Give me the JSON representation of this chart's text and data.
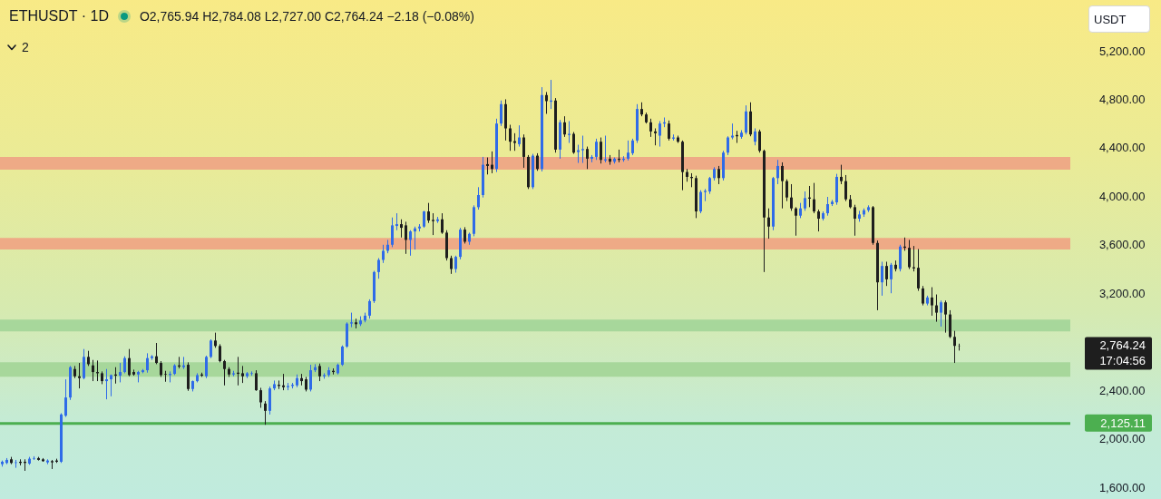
{
  "chart_data": {
    "type": "candlestick",
    "title": "ETHUSDT · 1D",
    "subtitle": "O2,765.94 H2,784.08 L2,727.00 C2,764.24 −2.18 (−0.08%)",
    "ylabel": "USDT",
    "annotations": [
      "2,764.24",
      "17:04:56",
      "2"
    ],
    "categories": [
      null,
      null,
      null,
      null,
      null,
      null,
      null,
      null,
      null,
      null,
      null,
      null,
      null,
      null,
      null,
      null,
      null,
      null,
      null,
      null,
      null,
      null,
      null,
      null,
      null,
      null,
      null,
      null,
      null,
      null,
      null,
      null,
      null,
      null,
      null,
      null,
      null,
      null,
      null,
      null,
      null,
      null,
      null,
      null,
      null,
      null,
      null,
      null,
      null,
      null,
      null,
      null,
      null,
      null,
      null,
      null,
      null,
      null,
      null,
      null,
      null,
      null,
      null,
      null,
      null,
      null,
      null,
      null,
      null,
      null,
      null,
      null,
      null,
      null,
      null,
      null,
      null,
      null,
      null,
      null,
      null,
      null,
      null,
      null,
      null,
      null,
      null,
      null,
      null,
      null,
      null,
      null,
      null,
      null,
      null,
      null,
      null,
      null,
      null,
      null,
      null,
      null,
      null,
      null,
      null,
      null,
      null,
      null,
      null,
      null,
      null,
      null,
      null,
      null,
      null,
      null,
      null,
      null,
      null,
      null,
      null,
      null,
      null,
      null,
      null,
      null,
      null,
      null,
      null,
      null,
      null,
      null,
      null,
      null,
      null,
      null,
      null,
      null,
      null,
      null,
      null,
      null,
      null,
      null,
      null,
      null,
      null,
      null,
      null,
      null,
      null,
      null,
      null,
      null,
      null,
      null,
      null,
      null,
      null,
      null,
      null,
      null,
      null,
      null,
      null,
      null,
      null,
      null,
      null,
      null,
      null,
      null,
      null,
      null,
      null,
      null,
      null,
      null,
      null,
      null,
      null,
      null,
      null,
      null,
      null,
      null,
      null,
      null,
      null,
      null,
      null,
      null,
      null,
      null,
      null,
      null,
      null,
      null,
      null,
      null,
      null,
      null,
      null,
      null,
      null,
      null,
      null,
      null,
      null,
      null,
      null,
      null,
      null,
      null,
      null,
      null,
      null,
      null,
      null,
      null,
      null,
      null,
      null,
      null,
      null,
      null,
      null,
      null,
      null,
      null,
      null,
      null,
      null,
      null,
      null,
      null
    ],
    "ohlc": [
      [
        1790,
        1820,
        1770,
        1810
      ],
      [
        1800,
        1840,
        1790,
        1825
      ],
      [
        1830,
        1850,
        1790,
        1800
      ],
      [
        1800,
        1825,
        1760,
        1805
      ],
      [
        1810,
        1830,
        1780,
        1800
      ],
      [
        1810,
        1830,
        1735,
        1800
      ],
      [
        1795,
        1850,
        1785,
        1835
      ],
      [
        1835,
        1855,
        1825,
        1840
      ],
      [
        1840,
        1850,
        1820,
        1825
      ],
      [
        1830,
        1840,
        1810,
        1815
      ],
      [
        1805,
        1830,
        1790,
        1820
      ],
      [
        1815,
        1825,
        1750,
        1805
      ],
      [
        1820,
        1835,
        1800,
        1810
      ],
      [
        1810,
        2210,
        1800,
        2200
      ],
      [
        2190,
        2490,
        2180,
        2340
      ],
      [
        2340,
        2600,
        2320,
        2590
      ],
      [
        2575,
        2600,
        2500,
        2515
      ],
      [
        2515,
        2625,
        2415,
        2500
      ],
      [
        2500,
        2740,
        2490,
        2675
      ],
      [
        2675,
        2725,
        2600,
        2615
      ],
      [
        2605,
        2650,
        2475,
        2550
      ],
      [
        2550,
        2645,
        2475,
        2540
      ],
      [
        2540,
        2555,
        2450,
        2475
      ],
      [
        2475,
        2575,
        2325,
        2490
      ],
      [
        2490,
        2530,
        2350,
        2525
      ],
      [
        2530,
        2590,
        2455,
        2520
      ],
      [
        2520,
        2625,
        2465,
        2550
      ],
      [
        2550,
        2680,
        2540,
        2665
      ],
      [
        2665,
        2740,
        2515,
        2525
      ],
      [
        2550,
        2570,
        2520,
        2530
      ],
      [
        2530,
        2560,
        2465,
        2550
      ],
      [
        2550,
        2575,
        2540,
        2565
      ],
      [
        2565,
        2705,
        2545,
        2665
      ],
      [
        2665,
        2690,
        2650,
        2680
      ],
      [
        2680,
        2790,
        2615,
        2625
      ],
      [
        2625,
        2640,
        2510,
        2525
      ],
      [
        2535,
        2560,
        2470,
        2530
      ],
      [
        2525,
        2555,
        2465,
        2535
      ],
      [
        2535,
        2615,
        2525,
        2605
      ],
      [
        2605,
        2675,
        2580,
        2595
      ],
      [
        2590,
        2675,
        2575,
        2605
      ],
      [
        2610,
        2630,
        2395,
        2410
      ],
      [
        2410,
        2480,
        2390,
        2475
      ],
      [
        2475,
        2540,
        2465,
        2525
      ],
      [
        2530,
        2545,
        2510,
        2520
      ],
      [
        2515,
        2685,
        2500,
        2675
      ],
      [
        2675,
        2820,
        2665,
        2810
      ],
      [
        2810,
        2875,
        2750,
        2765
      ],
      [
        2765,
        2780,
        2630,
        2640
      ],
      [
        2640,
        2650,
        2440,
        2575
      ],
      [
        2575,
        2590,
        2510,
        2530
      ],
      [
        2530,
        2560,
        2515,
        2540
      ],
      [
        2545,
        2675,
        2440,
        2535
      ],
      [
        2540,
        2600,
        2460,
        2515
      ],
      [
        2515,
        2550,
        2500,
        2540
      ],
      [
        2535,
        2555,
        2520,
        2540
      ],
      [
        2540,
        2565,
        2395,
        2400
      ],
      [
        2400,
        2420,
        2255,
        2300
      ],
      [
        2290,
        2310,
        2115,
        2230
      ],
      [
        2230,
        2430,
        2200,
        2415
      ],
      [
        2415,
        2480,
        2400,
        2450
      ],
      [
        2445,
        2480,
        2410,
        2435
      ],
      [
        2440,
        2535,
        2400,
        2425
      ],
      [
        2425,
        2460,
        2400,
        2435
      ],
      [
        2435,
        2460,
        2415,
        2445
      ],
      [
        2440,
        2530,
        2425,
        2500
      ],
      [
        2500,
        2535,
        2440,
        2475
      ],
      [
        2490,
        2510,
        2390,
        2405
      ],
      [
        2405,
        2610,
        2390,
        2565
      ],
      [
        2565,
        2615,
        2550,
        2590
      ],
      [
        2600,
        2620,
        2475,
        2515
      ],
      [
        2515,
        2540,
        2495,
        2525
      ],
      [
        2525,
        2590,
        2510,
        2565
      ],
      [
        2560,
        2580,
        2530,
        2550
      ],
      [
        2540,
        2620,
        2530,
        2610
      ],
      [
        2610,
        2770,
        2600,
        2760
      ],
      [
        2760,
        2960,
        2750,
        2950
      ],
      [
        2950,
        3040,
        2920,
        2960
      ],
      [
        2960,
        2990,
        2910,
        2945
      ],
      [
        2945,
        3010,
        2930,
        2975
      ],
      [
        2975,
        3040,
        2960,
        3015
      ],
      [
        3015,
        3150,
        2990,
        3135
      ],
      [
        3135,
        3385,
        3120,
        3375
      ],
      [
        3375,
        3490,
        3320,
        3475
      ],
      [
        3475,
        3600,
        3450,
        3550
      ],
      [
        3550,
        3640,
        3530,
        3600
      ],
      [
        3600,
        3825,
        3580,
        3760
      ],
      [
        3755,
        3860,
        3720,
        3770
      ],
      [
        3770,
        3810,
        3660,
        3740
      ],
      [
        3760,
        3790,
        3525,
        3640
      ],
      [
        3640,
        3720,
        3510,
        3710
      ],
      [
        3710,
        3750,
        3560,
        3735
      ],
      [
        3735,
        3770,
        3710,
        3750
      ],
      [
        3750,
        3880,
        3740,
        3875
      ],
      [
        3875,
        3945,
        3780,
        3800
      ],
      [
        3805,
        3860,
        3680,
        3795
      ],
      [
        3795,
        3830,
        3780,
        3810
      ],
      [
        3810,
        3860,
        3690,
        3700
      ],
      [
        3700,
        3720,
        3470,
        3490
      ],
      [
        3490,
        3510,
        3360,
        3400
      ],
      [
        3400,
        3510,
        3370,
        3500
      ],
      [
        3500,
        3740,
        3480,
        3725
      ],
      [
        3725,
        3745,
        3610,
        3625
      ],
      [
        3625,
        3700,
        3600,
        3690
      ],
      [
        3690,
        3925,
        3670,
        3910
      ],
      [
        3910,
        4075,
        3890,
        4010
      ],
      [
        4010,
        4325,
        3990,
        4260
      ],
      [
        4265,
        4320,
        4180,
        4250
      ],
      [
        4260,
        4370,
        4190,
        4225
      ],
      [
        4225,
        4640,
        4200,
        4600
      ],
      [
        4600,
        4790,
        4580,
        4760
      ],
      [
        4760,
        4800,
        4460,
        4560
      ],
      [
        4560,
        4590,
        4375,
        4450
      ],
      [
        4455,
        4520,
        4375,
        4440
      ],
      [
        4430,
        4585,
        4410,
        4485
      ],
      [
        4485,
        4510,
        4235,
        4325
      ],
      [
        4325,
        4340,
        4060,
        4075
      ],
      [
        4075,
        4350,
        4060,
        4335
      ],
      [
        4335,
        4355,
        4210,
        4225
      ],
      [
        4225,
        4900,
        4205,
        4835
      ],
      [
        4835,
        4860,
        4680,
        4785
      ],
      [
        4780,
        4960,
        4720,
        4790
      ],
      [
        4790,
        4810,
        4360,
        4385
      ],
      [
        4385,
        4630,
        4310,
        4610
      ],
      [
        4610,
        4660,
        4490,
        4510
      ],
      [
        4505,
        4620,
        4440,
        4515
      ],
      [
        4515,
        4530,
        4350,
        4360
      ],
      [
        4365,
        4425,
        4275,
        4380
      ],
      [
        4380,
        4500,
        4275,
        4390
      ],
      [
        4390,
        4410,
        4225,
        4310
      ],
      [
        4310,
        4340,
        4280,
        4325
      ],
      [
        4325,
        4475,
        4300,
        4450
      ],
      [
        4450,
        4485,
        4270,
        4300
      ],
      [
        4295,
        4500,
        4280,
        4305
      ],
      [
        4310,
        4340,
        4260,
        4285
      ],
      [
        4285,
        4320,
        4270,
        4310
      ],
      [
        4310,
        4385,
        4280,
        4300
      ],
      [
        4300,
        4330,
        4285,
        4310
      ],
      [
        4310,
        4460,
        4295,
        4360
      ],
      [
        4355,
        4475,
        4340,
        4460
      ],
      [
        4460,
        4760,
        4440,
        4720
      ],
      [
        4720,
        4775,
        4660,
        4675
      ],
      [
        4675,
        4690,
        4600,
        4610
      ],
      [
        4610,
        4640,
        4490,
        4535
      ],
      [
        4535,
        4560,
        4420,
        4520
      ],
      [
        4500,
        4620,
        4410,
        4600
      ],
      [
        4600,
        4650,
        4570,
        4610
      ],
      [
        4600,
        4625,
        4460,
        4475
      ],
      [
        4475,
        4510,
        4460,
        4485
      ],
      [
        4485,
        4500,
        4440,
        4450
      ],
      [
        4450,
        4460,
        4050,
        4200
      ],
      [
        4200,
        4225,
        4120,
        4160
      ],
      [
        4160,
        4190,
        4075,
        4150
      ],
      [
        4150,
        4170,
        3820,
        3875
      ],
      [
        3875,
        4050,
        3860,
        4035
      ],
      [
        4035,
        4060,
        3960,
        4045
      ],
      [
        4040,
        4160,
        4020,
        4150
      ],
      [
        4150,
        4240,
        4130,
        4225
      ],
      [
        4225,
        4250,
        4100,
        4150
      ],
      [
        4150,
        4375,
        4130,
        4360
      ],
      [
        4360,
        4495,
        4340,
        4485
      ],
      [
        4485,
        4600,
        4470,
        4500
      ],
      [
        4505,
        4540,
        4440,
        4495
      ],
      [
        4490,
        4545,
        4475,
        4525
      ],
      [
        4525,
        4750,
        4510,
        4700
      ],
      [
        4700,
        4775,
        4495,
        4510
      ],
      [
        4450,
        4560,
        4420,
        4535
      ],
      [
        4535,
        4550,
        4360,
        4375
      ],
      [
        4375,
        4385,
        3375,
        3825
      ],
      [
        3825,
        3900,
        3650,
        3750
      ],
      [
        3750,
        4160,
        3720,
        4150
      ],
      [
        4150,
        4300,
        4100,
        4250
      ],
      [
        4250,
        4280,
        3900,
        4125
      ],
      [
        4125,
        4140,
        3960,
        3990
      ],
      [
        3990,
        4100,
        3880,
        3900
      ],
      [
        3900,
        3910,
        3675,
        3840
      ],
      [
        3840,
        3945,
        3820,
        3900
      ],
      [
        3900,
        4040,
        3880,
        3985
      ],
      [
        3990,
        4085,
        3910,
        3980
      ],
      [
        3975,
        4110,
        3860,
        3875
      ],
      [
        3875,
        3890,
        3710,
        3815
      ],
      [
        3815,
        3875,
        3800,
        3860
      ],
      [
        3860,
        3995,
        3840,
        3935
      ],
      [
        3935,
        3970,
        3920,
        3955
      ],
      [
        3950,
        4185,
        3930,
        4160
      ],
      [
        4160,
        4260,
        4100,
        4125
      ],
      [
        4125,
        4175,
        3960,
        3975
      ],
      [
        3975,
        4010,
        3900,
        3910
      ],
      [
        3910,
        3930,
        3675,
        3815
      ],
      [
        3815,
        3880,
        3790,
        3850
      ],
      [
        3850,
        3900,
        3830,
        3885
      ],
      [
        3885,
        3925,
        3870,
        3910
      ],
      [
        3910,
        3920,
        3600,
        3615
      ],
      [
        3615,
        3635,
        3060,
        3290
      ],
      [
        3290,
        3460,
        3180,
        3425
      ],
      [
        3425,
        3460,
        3260,
        3315
      ],
      [
        3315,
        3450,
        3200,
        3435
      ],
      [
        3435,
        3470,
        3380,
        3400
      ],
      [
        3400,
        3600,
        3380,
        3585
      ],
      [
        3585,
        3660,
        3550,
        3575
      ],
      [
        3575,
        3640,
        3400,
        3415
      ],
      [
        3415,
        3590,
        3380,
        3405
      ],
      [
        3410,
        3565,
        3220,
        3240
      ],
      [
        3240,
        3260,
        3100,
        3115
      ],
      [
        3115,
        3180,
        3100,
        3165
      ],
      [
        3165,
        3250,
        3015,
        3100
      ],
      [
        3100,
        3190,
        2965,
        3040
      ],
      [
        3040,
        3140,
        2925,
        3125
      ],
      [
        3125,
        3140,
        2875,
        3025
      ],
      [
        3025,
        3060,
        2830,
        2840
      ],
      [
        2840,
        2890,
        2625,
        2766
      ],
      [
        2765.94,
        2784.08,
        2727,
        2764.24
      ],
      null,
      null,
      null,
      null,
      null,
      null,
      null,
      null,
      null,
      null,
      null,
      null,
      null,
      null,
      null,
      null,
      null,
      null,
      null,
      null,
      null,
      null,
      null,
      null
    ],
    "colors": [
      "#2f6be8",
      "#2f6be8",
      "#1e1e1e",
      "#2f6be8",
      "#1e1e1e",
      "#1e1e1e",
      "#2f6be8",
      "#2f6be8",
      "#1e1e1e",
      "#1e1e1e",
      "#2f6be8",
      "#1e1e1e",
      "#1e1e1e",
      "#2f6be8",
      "#2f6be8",
      "#2f6be8",
      "#1e1e1e",
      "#1e1e1e",
      "#2f6be8",
      "#1e1e1e",
      "#1e1e1e",
      "#1e1e1e",
      "#1e1e1e",
      "#2f6be8",
      "#2f6be8",
      "#1e1e1e",
      "#2f6be8",
      "#2f6be8",
      "#1e1e1e",
      "#1e1e1e",
      "#2f6be8",
      "#2f6be8",
      "#2f6be8",
      "#2f6be8",
      "#1e1e1e",
      "#1e1e1e",
      "#1e1e1e",
      "#2f6be8",
      "#2f6be8",
      "#1e1e1e",
      "#2f6be8",
      "#1e1e1e",
      "#2f6be8",
      "#2f6be8",
      "#1e1e1e",
      "#2f6be8",
      "#2f6be8",
      "#1e1e1e",
      "#1e1e1e",
      "#1e1e1e",
      "#1e1e1e",
      "#2f6be8",
      "#1e1e1e",
      "#1e1e1e",
      "#2f6be8",
      "#2f6be8",
      "#1e1e1e",
      "#1e1e1e",
      "#1e1e1e",
      "#2f6be8",
      "#2f6be8",
      "#1e1e1e",
      "#1e1e1e",
      "#2f6be8",
      "#2f6be8",
      "#2f6be8",
      "#1e1e1e",
      "#1e1e1e",
      "#2f6be8",
      "#2f6be8",
      "#1e1e1e",
      "#2f6be8",
      "#2f6be8",
      "#1e1e1e",
      "#2f6be8",
      "#2f6be8",
      "#2f6be8",
      "#2f6be8",
      "#1e1e1e",
      "#2f6be8",
      "#2f6be8",
      "#2f6be8",
      "#2f6be8",
      "#2f6be8",
      "#2f6be8",
      "#2f6be8",
      "#2f6be8",
      "#2f6be8",
      "#1e1e1e",
      "#1e1e1e",
      "#2f6be8",
      "#2f6be8",
      "#2f6be8",
      "#2f6be8",
      "#1e1e1e",
      "#1e1e1e",
      "#2f6be8",
      "#1e1e1e",
      "#1e1e1e",
      "#1e1e1e",
      "#2f6be8",
      "#2f6be8",
      "#1e1e1e",
      "#2f6be8",
      "#2f6be8",
      "#2f6be8",
      "#2f6be8",
      "#1e1e1e",
      "#1e1e1e",
      "#2f6be8",
      "#2f6be8",
      "#1e1e1e",
      "#1e1e1e",
      "#1e1e1e",
      "#2f6be8",
      "#1e1e1e",
      "#1e1e1e",
      "#2f6be8",
      "#1e1e1e",
      "#2f6be8",
      "#1e1e1e",
      "#2f6be8",
      "#1e1e1e",
      "#2f6be8",
      "#1e1e1e",
      "#2f6be8",
      "#1e1e1e",
      "#2f6be8",
      "#2f6be8",
      "#1e1e1e",
      "#2f6be8",
      "#2f6be8",
      "#1e1e1e",
      "#2f6be8",
      "#1e1e1e",
      "#2f6be8",
      "#1e1e1e",
      "#2f6be8",
      "#2f6be8",
      "#2f6be8",
      "#2f6be8",
      "#1e1e1e",
      "#1e1e1e",
      "#1e1e1e",
      "#1e1e1e",
      "#2f6be8",
      "#2f6be8",
      "#1e1e1e",
      "#2f6be8",
      "#1e1e1e",
      "#1e1e1e",
      "#1e1e1e",
      "#1e1e1e",
      "#1e1e1e",
      "#2f6be8",
      "#2f6be8",
      "#2f6be8",
      "#2f6be8",
      "#1e1e1e",
      "#2f6be8",
      "#2f6be8",
      "#2f6be8",
      "#1e1e1e",
      "#2f6be8",
      "#2f6be8",
      "#1e1e1e",
      "#2f6be8",
      "#1e1e1e",
      "#1e1e1e",
      "#1e1e1e",
      "#2f6be8",
      "#2f6be8",
      "#1e1e1e",
      "#1e1e1e",
      "#1e1e1e",
      "#1e1e1e",
      "#2f6be8",
      "#2f6be8",
      "#1e1e1e",
      "#1e1e1e",
      "#1e1e1e",
      "#2f6be8",
      "#2f6be8",
      "#2f6be8",
      "#2f6be8",
      "#1e1e1e",
      "#1e1e1e",
      "#1e1e1e",
      "#1e1e1e",
      "#2f6be8",
      "#2f6be8",
      "#2f6be8",
      "#1e1e1e",
      "#1e1e1e",
      "#2f6be8",
      "#1e1e1e",
      "#2f6be8",
      "#1e1e1e",
      "#2f6be8",
      "#1e1e1e",
      "#1e1e1e",
      "#1e1e1e",
      "#1e1e1e",
      "#1e1e1e",
      "#2f6be8",
      "#1e1e1e",
      "#1e1e1e",
      "#2f6be8",
      "#1e1e1e",
      "#1e1e1e",
      "#1e1e1e",
      "#1e1e1e",
      null,
      null,
      null,
      null,
      null,
      null,
      null,
      null,
      null,
      null,
      null,
      null,
      null,
      null,
      null,
      null,
      null,
      null,
      null,
      null,
      null,
      null,
      null,
      null
    ],
    "ylim": [
      1600,
      5200
    ],
    "yticks": [
      {
        "value": 1600,
        "label": "1,600.00"
      },
      {
        "value": 2000,
        "label": "2,000.00"
      },
      {
        "value": 2400,
        "label": "2,400.00"
      },
      {
        "value": 3200,
        "label": "3,200.00"
      },
      {
        "value": 3600,
        "label": "3,600.00"
      },
      {
        "value": 4000,
        "label": "4,000.00"
      },
      {
        "value": 4400,
        "label": "4,400.00"
      },
      {
        "value": 4800,
        "label": "4,800.00"
      },
      {
        "value": 5200,
        "label": "5,200.00"
      }
    ],
    "tick_labels": "y",
    "ref_lines": [
      {
        "axis": "y",
        "value": 2125.11,
        "label": "2,125.11",
        "color": "#4caf50"
      }
    ],
    "bands": [
      {
        "axis": "y",
        "from": 4220,
        "to": 4325,
        "color": "#eeaa86"
      },
      {
        "axis": "y",
        "from": 3560,
        "to": 3657,
        "color": "#eeaa86"
      },
      {
        "axis": "y",
        "from": 2886,
        "to": 2983,
        "color": "#a7d79b"
      },
      {
        "axis": "y",
        "from": 2511,
        "to": 2631,
        "color": "#a7d79b"
      }
    ]
  }
}
